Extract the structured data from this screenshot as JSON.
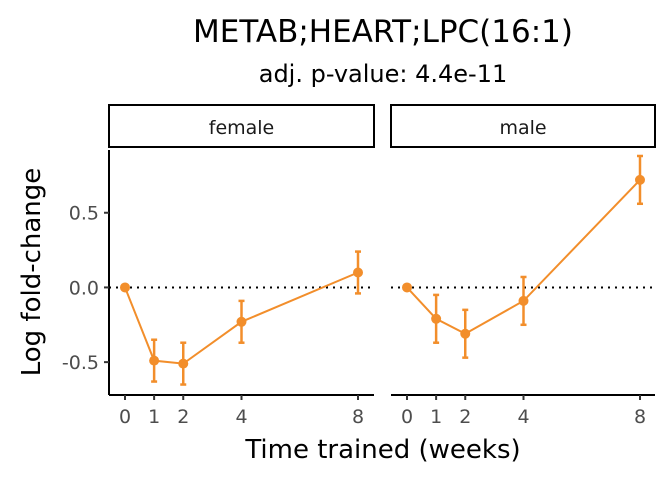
{
  "title": "METAB;HEART;LPC(16:1)",
  "subtitle": "adj. p-value: 4.4e-11",
  "xlabel": "Time trained (weeks)",
  "ylabel": "Log fold-change",
  "colors": {
    "series": "#F28E2B",
    "axis": "#000000",
    "tick_text": "#4d4d4d"
  },
  "chart_data": {
    "type": "line",
    "title": "METAB;HEART;LPC(16:1)",
    "subtitle": "adj. p-value: 4.4e-11",
    "xlabel": "Time trained (weeks)",
    "ylabel": "Log fold-change",
    "x_ticks": [
      0,
      1,
      2,
      4,
      8
    ],
    "y_ticks": [
      -0.5,
      0.0,
      0.5
    ],
    "y_tick_labels": [
      "-0.5",
      "0.0",
      "0.5"
    ],
    "ylim": [
      -0.72,
      0.92
    ],
    "reference_line": {
      "y": 0,
      "style": "dotted"
    },
    "grid": false,
    "panels": [
      {
        "label": "female",
        "x": [
          0,
          1,
          2,
          4,
          8
        ],
        "y": [
          0.0,
          -0.49,
          -0.51,
          -0.23,
          0.1
        ],
        "error_low": [
          0.0,
          -0.63,
          -0.65,
          -0.37,
          -0.04
        ],
        "error_high": [
          0.0,
          -0.35,
          -0.37,
          -0.09,
          0.24
        ]
      },
      {
        "label": "male",
        "x": [
          0,
          1,
          2,
          4,
          8
        ],
        "y": [
          0.0,
          -0.21,
          -0.31,
          -0.09,
          0.72
        ],
        "error_low": [
          0.0,
          -0.37,
          -0.47,
          -0.25,
          0.56
        ],
        "error_high": [
          0.0,
          -0.05,
          -0.15,
          0.07,
          0.88
        ]
      }
    ]
  }
}
